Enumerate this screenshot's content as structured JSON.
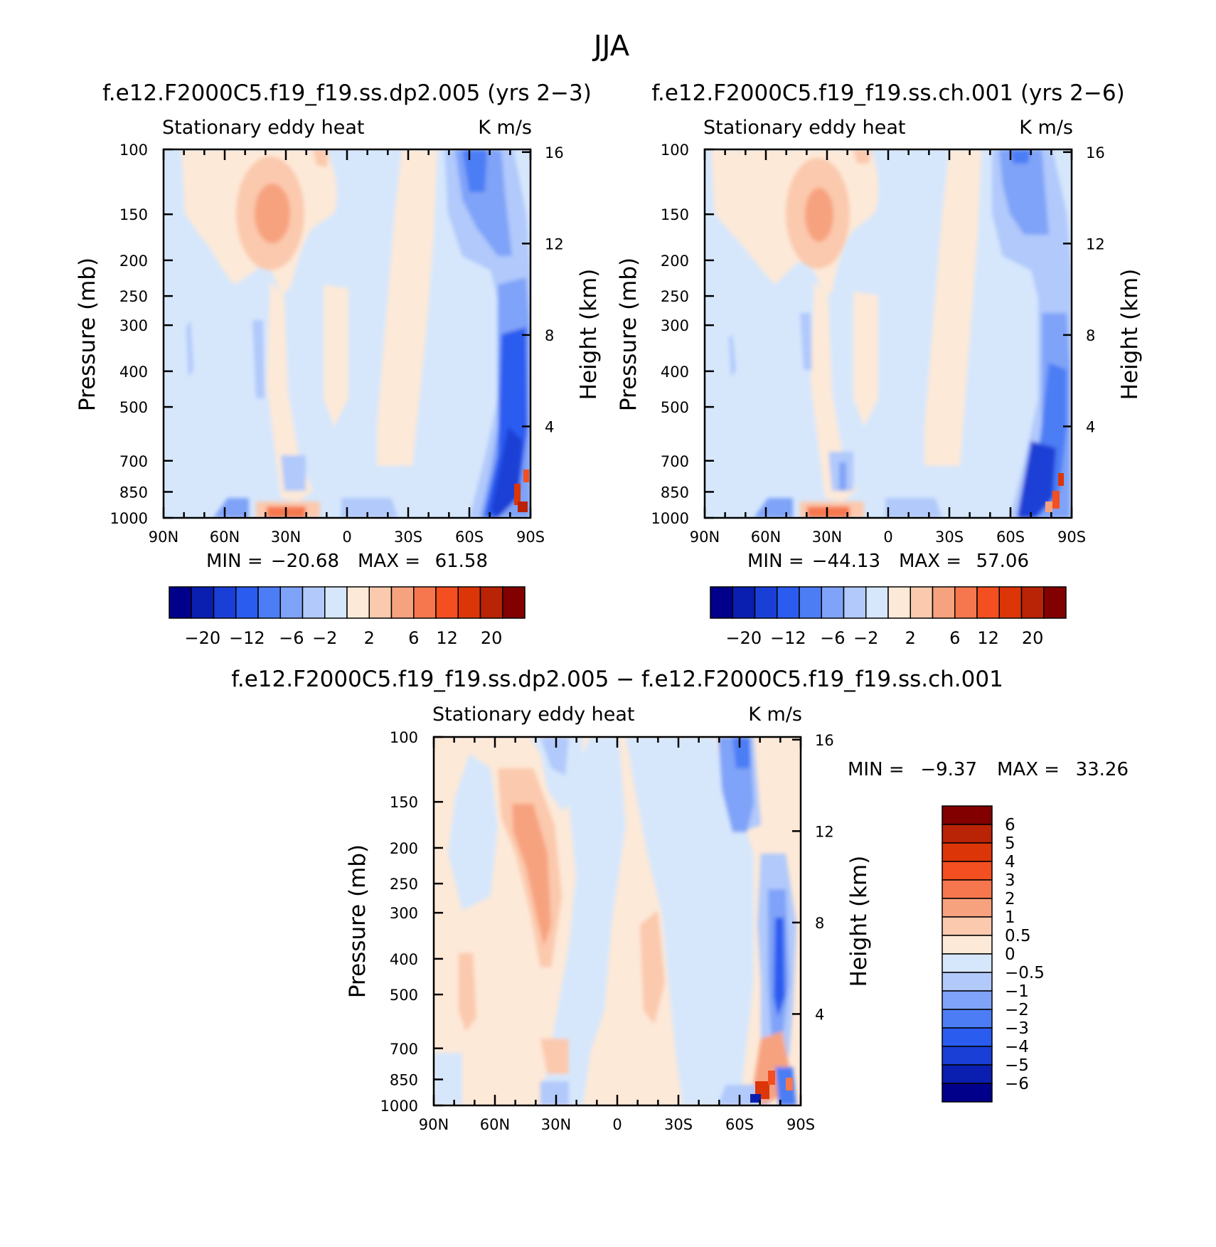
{
  "title": "JJA",
  "colors": {
    "levels_21": [
      "#00008b",
      "#0a1fb0",
      "#1a3fd6",
      "#2a5cf0",
      "#4c7df5",
      "#7fa3f8",
      "#b1c9fb",
      "#d6e7fc",
      "#fde9d8",
      "#fbc9ad",
      "#f7a27f",
      "#f6774e",
      "#f34f20",
      "#dc3608",
      "#b92306",
      "#820000"
    ]
  },
  "chart_data": [
    {
      "type": "heatmap",
      "title": "f.e12.F2000C5.f19_f19.ss.dp2.005 (yrs 2−3)",
      "variable": "Stationary eddy heat",
      "units": "K m/s",
      "ylabel": "Pressure (mb)",
      "ylabel_right": "Height (km)",
      "x_ticks": [
        "90N",
        "60N",
        "30N",
        "0",
        "30S",
        "60S",
        "90S"
      ],
      "y_ticks": [
        "100",
        "150",
        "200",
        "250",
        "300",
        "400",
        "500",
        "700",
        "850",
        "1000"
      ],
      "y2_ticks": [
        "16",
        "12",
        "8",
        "4"
      ],
      "min_label": "MIN =",
      "min_value": "−20.68",
      "max_label": "MAX =",
      "max_value": "61.58",
      "colorbar_labels": [
        "−20",
        "−12",
        "−6",
        "−2",
        "2",
        "6",
        "12",
        "20"
      ]
    },
    {
      "type": "heatmap",
      "title": "f.e12.F2000C5.f19_f19.ss.ch.001 (yrs 2−6)",
      "variable": "Stationary eddy heat",
      "units": "K m/s",
      "ylabel": "Pressure (mb)",
      "ylabel_right": "Height (km)",
      "x_ticks": [
        "90N",
        "60N",
        "30N",
        "0",
        "30S",
        "60S",
        "90S"
      ],
      "y_ticks": [
        "100",
        "150",
        "200",
        "250",
        "300",
        "400",
        "500",
        "700",
        "850",
        "1000"
      ],
      "y2_ticks": [
        "16",
        "12",
        "8",
        "4"
      ],
      "min_label": "MIN =",
      "min_value": "−44.13",
      "max_label": "MAX =",
      "max_value": "57.06",
      "colorbar_labels": [
        "−20",
        "−12",
        "−6",
        "−2",
        "2",
        "6",
        "12",
        "20"
      ]
    },
    {
      "type": "heatmap",
      "title": "f.e12.F2000C5.f19_f19.ss.dp2.005 − f.e12.F2000C5.f19_f19.ss.ch.001",
      "variable": "Stationary eddy heat",
      "units": "K m/s",
      "ylabel": "Pressure (mb)",
      "ylabel_right": "Height (km)",
      "x_ticks": [
        "90N",
        "60N",
        "30N",
        "0",
        "30S",
        "60S",
        "90S"
      ],
      "y_ticks": [
        "100",
        "150",
        "200",
        "250",
        "300",
        "400",
        "500",
        "700",
        "850",
        "1000"
      ],
      "y2_ticks": [
        "16",
        "12",
        "8",
        "4"
      ],
      "min_label": "MIN =",
      "min_value": "−9.37",
      "max_label": "MAX =",
      "max_value": "33.26",
      "colorbar_labels": [
        "6",
        "5",
        "4",
        "3",
        "2",
        "1",
        "0.5",
        "0",
        "−0.5",
        "−1",
        "−2",
        "−3",
        "−4",
        "−5",
        "−6"
      ]
    }
  ]
}
